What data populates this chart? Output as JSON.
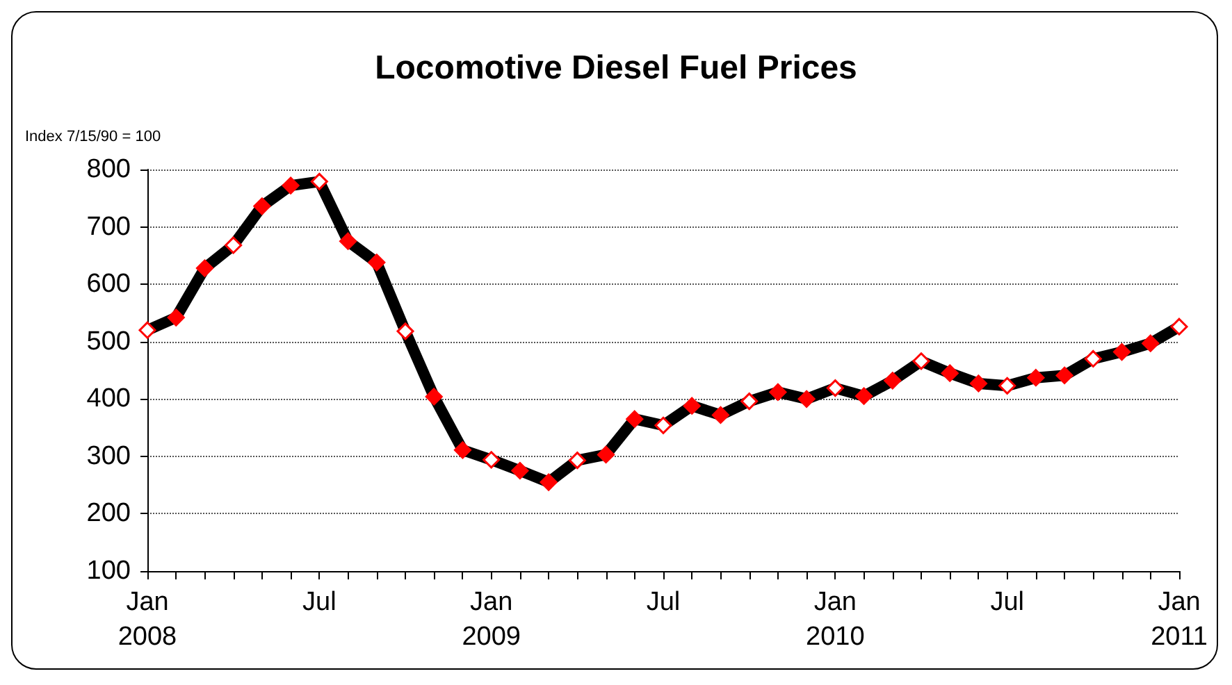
{
  "chart_data": {
    "type": "line",
    "title": "Locomotive Diesel Fuel Prices",
    "ylabel": "Index 7/15/90 = 100",
    "categories": [
      "Jan\n2008",
      null,
      null,
      null,
      null,
      null,
      "Jul",
      null,
      null,
      null,
      null,
      null,
      "Jan\n2009",
      null,
      null,
      null,
      null,
      null,
      "Jul",
      null,
      null,
      null,
      null,
      null,
      "Jan\n2010",
      null,
      null,
      null,
      null,
      null,
      "Jul",
      null,
      null,
      null,
      null,
      null,
      "Jan\n2011"
    ],
    "series": [
      {
        "color": "#000000",
        "values": [
          520,
          542,
          628,
          668,
          736,
          772,
          779,
          675,
          638,
          518,
          404,
          311,
          294,
          275,
          255,
          293,
          303,
          365,
          354,
          388,
          372,
          396,
          412,
          400,
          419,
          405,
          432,
          466,
          445,
          427,
          423,
          437,
          441,
          470,
          482,
          497,
          526
        ],
        "colors": [
          "#ffffff",
          "#ff0000",
          "#ff0000",
          "#ffffff",
          "#ff0000",
          "#ff0000",
          "#ffffff",
          "#ff0000",
          "#ff0000",
          "#ffffff",
          "#ff0000",
          "#ff0000",
          "#ffffff",
          "#ff0000",
          "#ff0000",
          "#ffffff",
          "#ff0000",
          "#ff0000",
          "#ffffff",
          "#ff0000",
          "#ff0000",
          "#ffffff",
          "#ff0000",
          "#ff0000",
          "#ffffff",
          "#ff0000",
          "#ff0000",
          "#ffffff",
          "#ff0000",
          "#ff0000",
          "#ffffff",
          "#ff0000",
          "#ff0000",
          "#ffffff",
          "#ff0000",
          "#ff0000",
          "#ffffff"
        ]
      }
    ],
    "ylim": [
      100,
      800
    ],
    "yticks": [
      100,
      200,
      300,
      400,
      500,
      600,
      700,
      800
    ],
    "grid": "y",
    "marker": "diamond",
    "line_style": "solid"
  }
}
